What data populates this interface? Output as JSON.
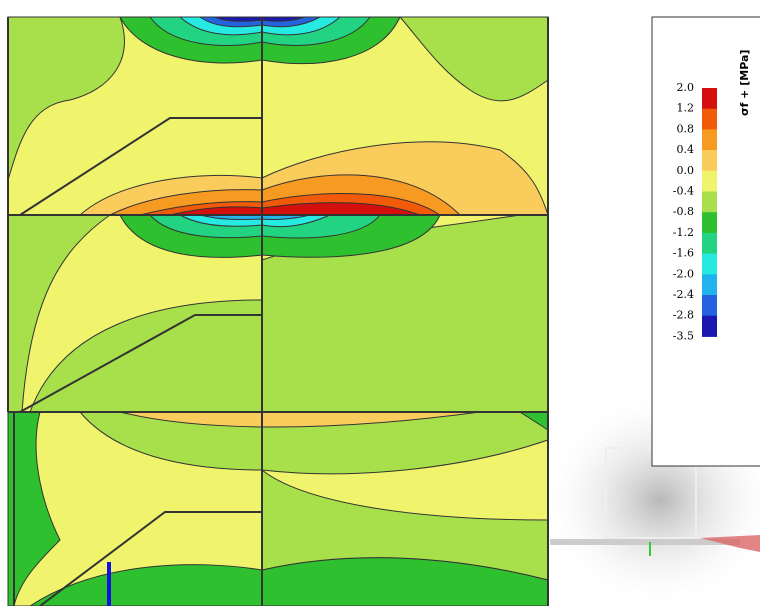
{
  "legend": {
    "title": "σf + [MPa]",
    "labels": [
      "2.0",
      "1.2",
      "0.8",
      "0.4",
      "0.0",
      "-0.4",
      "-0.8",
      "-1.2",
      "-1.6",
      "-2.0",
      "-2.4",
      "-2.8",
      "-3.5"
    ],
    "colors": [
      "#d4100e",
      "#f05a08",
      "#f79a22",
      "#f9cc5c",
      "#f0f46c",
      "#a8e04c",
      "#2ec02e",
      "#22d482",
      "#26eae2",
      "#22b2ee",
      "#2462e0",
      "#1a18b0"
    ]
  }
}
